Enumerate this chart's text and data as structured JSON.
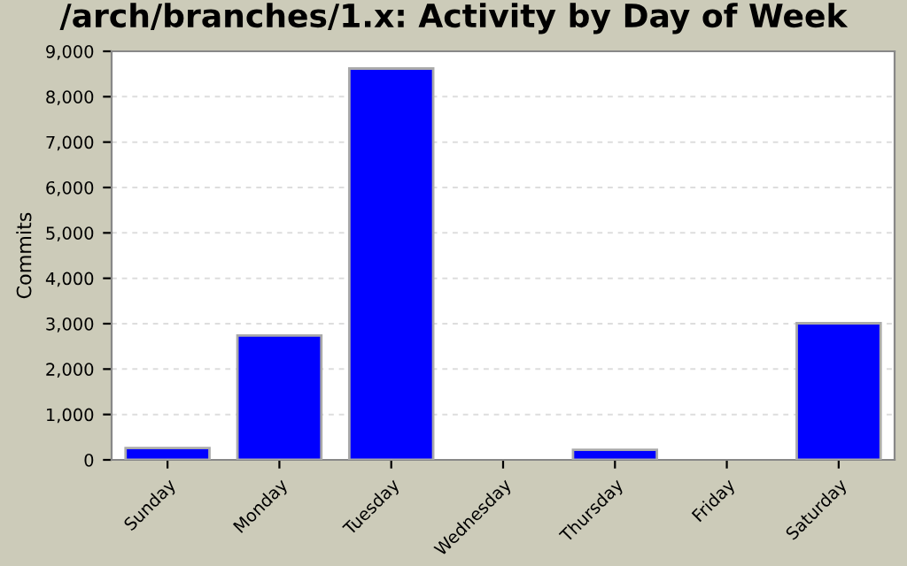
{
  "chart_data": {
    "type": "bar",
    "title": "/arch/branches/1.x: Activity by Day of Week",
    "ylabel": "Commits",
    "categories": [
      "Sunday",
      "Monday",
      "Tuesday",
      "Wednesday",
      "Thursday",
      "Friday",
      "Saturday"
    ],
    "values": [
      260,
      2740,
      8620,
      0,
      220,
      0,
      3010
    ],
    "color": "#0000ff",
    "ylim": [
      0,
      9000
    ],
    "yticks": [
      {
        "value": 0,
        "label": "0"
      },
      {
        "value": 1000,
        "label": "1,000"
      },
      {
        "value": 2000,
        "label": "2,000"
      },
      {
        "value": 3000,
        "label": "3,000"
      },
      {
        "value": 4000,
        "label": "4,000"
      },
      {
        "value": 5000,
        "label": "5,000"
      },
      {
        "value": 6000,
        "label": "6,000"
      },
      {
        "value": 7000,
        "label": "7,000"
      },
      {
        "value": 8000,
        "label": "8,000"
      },
      {
        "value": 9000,
        "label": "9,000"
      }
    ],
    "grid": "y",
    "legend": false
  }
}
